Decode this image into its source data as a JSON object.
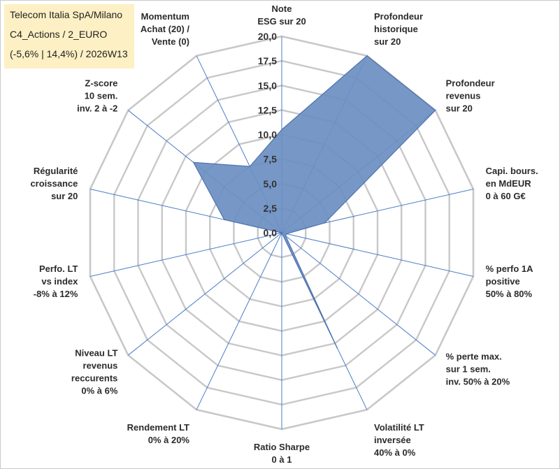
{
  "title": {
    "lines": [
      "Telecom Italia SpA/Milano",
      "C4_Actions / 2_EURO",
      "(-5,6% | 14,4%) / 2026W13"
    ]
  },
  "colors": {
    "fill": "#6b8fc2",
    "stroke": "#4f72ad",
    "grid": "#c8c8c8",
    "spoke": "#4a7ec7",
    "title_bg": "#fdf0c4"
  },
  "chart_data": {
    "type": "radar",
    "title": "Telecom Italia SpA/Milano C4_Actions / 2_EURO (-5,6% | 14,4%) / 2026W13",
    "rmin": 0,
    "rmax": 20,
    "tick_step": 2.5,
    "tick_labels": [
      "0,0",
      "2,5",
      "5,0",
      "7,5",
      "10,0",
      "12,5",
      "15,0",
      "17,5",
      "20,0"
    ],
    "axes": [
      {
        "label": [
          "Note",
          "ESG sur 20"
        ],
        "value": 10.5
      },
      {
        "label": [
          "Profondeur",
          "historique",
          "sur 20"
        ],
        "value": 20.0
      },
      {
        "label": [
          "Profondeur",
          "revenus",
          "sur 20"
        ],
        "value": 20.0
      },
      {
        "label": [
          "Capi. bours.",
          "en MdEUR",
          "0 à 60 G€"
        ],
        "value": 4.5
      },
      {
        "label": [
          "% perfo 1A",
          "positive",
          "50% à 80%"
        ],
        "value": 0.5
      },
      {
        "label": [
          "% perte max.",
          "sur 1 sem.",
          "inv. 50% à 20%"
        ],
        "value": 0.5
      },
      {
        "label": [
          "Volatilité LT",
          "inversée",
          "40% à 0%"
        ],
        "value": 13.0
      },
      {
        "label": [
          "Ratio Sharpe",
          "0 à 1"
        ],
        "value": 0.0
      },
      {
        "label": [
          "Rendement LT",
          "0% à 20%"
        ],
        "value": 0.0
      },
      {
        "label": [
          "Niveau LT",
          "revenus",
          "reccurents",
          "0% à 6%"
        ],
        "value": 0.0
      },
      {
        "label": [
          "Perfo. LT",
          "vs index",
          "-8% à 12%"
        ],
        "value": 0.0
      },
      {
        "label": [
          "Régularité",
          "croissance",
          "sur 20"
        ],
        "value": 6.0
      },
      {
        "label": [
          "Z-score",
          "10 sem.",
          "inv. 2 à -2"
        ],
        "value": 11.5
      },
      {
        "label": [
          "Momentum",
          "Achat (20) /",
          "Vente (0)"
        ],
        "value": 7.5
      }
    ]
  }
}
